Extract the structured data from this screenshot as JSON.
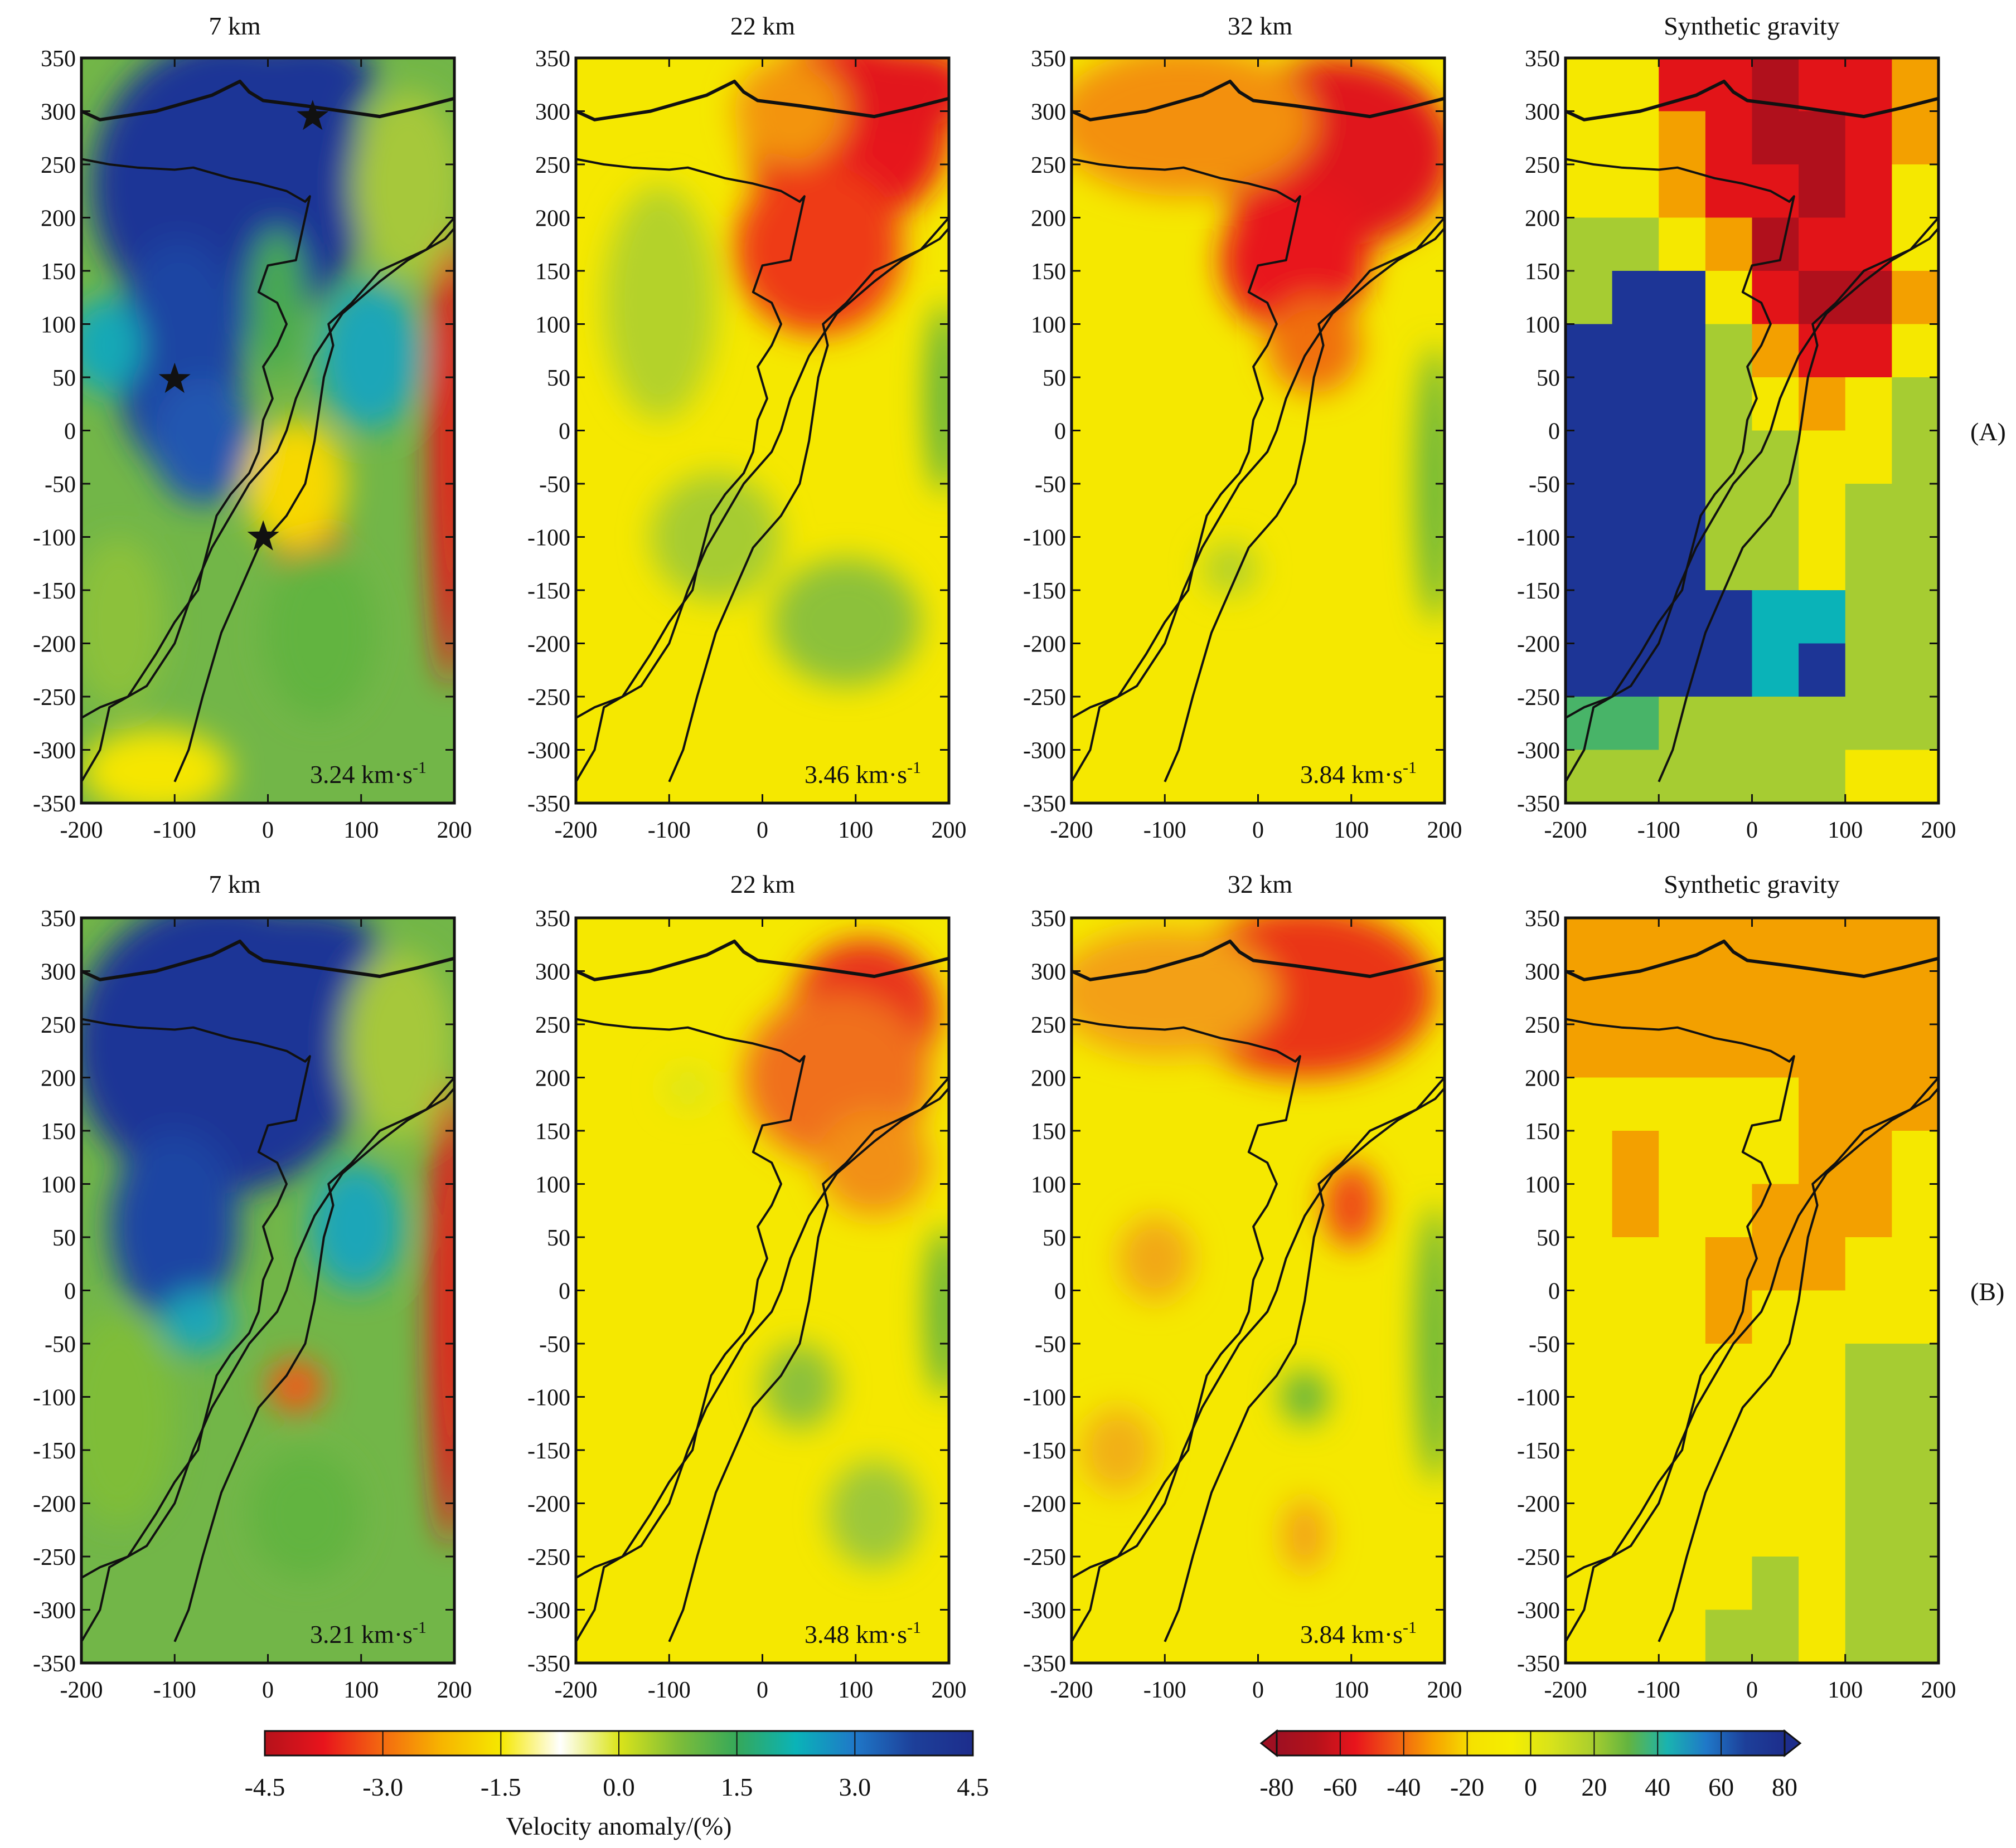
{
  "figure": {
    "row_labels": [
      "(A)",
      "(B)"
    ],
    "colorbars": [
      {
        "title": "Velocity anomaly/(%)",
        "range": [
          -4.5,
          4.5
        ],
        "ticks": [
          "-4.5",
          "-3.0",
          "-1.5",
          "0.0",
          "1.5",
          "3.0",
          "4.5"
        ],
        "stops": [
          "#b5121b",
          "#e8141c",
          "#f46a10",
          "#f7b500",
          "#f5e800",
          "#ffffff",
          "#dbe41a",
          "#7fbd38",
          "#35a85a",
          "#0ab3b8",
          "#1f78c8",
          "#1d3f99",
          "#1d2d8c"
        ]
      },
      {
        "title": "",
        "range": [
          -80,
          80
        ],
        "ticks": [
          "-80",
          "-60",
          "-40",
          "-20",
          "0",
          "20",
          "40",
          "60",
          "80"
        ],
        "stops": [
          "#9e1022",
          "#b5121b",
          "#e8141c",
          "#f05a14",
          "#f7a200",
          "#f5e200",
          "#f5ee00",
          "#d9e31a",
          "#aed02c",
          "#63b440",
          "#1ab3b0",
          "#1f78c8",
          "#1d3f99",
          "#1d2d8c"
        ]
      }
    ]
  },
  "chart_data": [
    {
      "type": "heatmap",
      "row": "A",
      "title": "7 km",
      "annotation": "3.24 km·s",
      "annotation_sup": "-1",
      "xlim": [
        -200,
        200
      ],
      "ylim": [
        -350,
        350
      ],
      "xticks": [
        "-200",
        "-100",
        "0",
        "100",
        "200"
      ],
      "yticks": [
        "350",
        "300",
        "250",
        "200",
        "150",
        "100",
        "50",
        "0",
        "-50",
        "-100",
        "-150",
        "-200",
        "-250",
        "-300",
        "-350"
      ],
      "stars": [
        {
          "x": 48,
          "y": 295
        },
        {
          "x": -100,
          "y": 48
        },
        {
          "x": -5,
          "y": -100
        }
      ]
    },
    {
      "type": "heatmap",
      "row": "A",
      "title": "22 km",
      "annotation": "3.46 km·s",
      "annotation_sup": "-1",
      "xlim": [
        -200,
        200
      ],
      "ylim": [
        -350,
        350
      ],
      "xticks": [
        "-200",
        "-100",
        "0",
        "100",
        "200"
      ],
      "yticks": [
        "350",
        "300",
        "250",
        "200",
        "150",
        "100",
        "50",
        "0",
        "-50",
        "-100",
        "-150",
        "-200",
        "-250",
        "-300",
        "-350"
      ]
    },
    {
      "type": "heatmap",
      "row": "A",
      "title": "32 km",
      "annotation": "3.84 km·s",
      "annotation_sup": "-1",
      "xlim": [
        -200,
        200
      ],
      "ylim": [
        -350,
        350
      ],
      "xticks": [
        "-200",
        "-100",
        "0",
        "100",
        "200"
      ],
      "yticks": [
        "350",
        "300",
        "250",
        "200",
        "150",
        "100",
        "50",
        "0",
        "-50",
        "-100",
        "-150",
        "-200",
        "-250",
        "-300",
        "-350"
      ]
    },
    {
      "type": "heatmap",
      "row": "A",
      "title": "Synthetic gravity",
      "xlim": [
        -200,
        200
      ],
      "ylim": [
        -350,
        350
      ],
      "xticks": [
        "-200",
        "-100",
        "0",
        "100",
        "200"
      ],
      "yticks": [
        "350",
        "300",
        "250",
        "200",
        "150",
        "100",
        "50",
        "0",
        "-50",
        "-100",
        "-150",
        "-200",
        "-250",
        "-300",
        "-350"
      ]
    },
    {
      "type": "heatmap",
      "row": "B",
      "title": "7 km",
      "annotation": "3.21 km·s",
      "annotation_sup": "-1",
      "xlim": [
        -200,
        200
      ],
      "ylim": [
        -350,
        350
      ],
      "xticks": [
        "-200",
        "-100",
        "0",
        "100",
        "200"
      ],
      "yticks": [
        "350",
        "300",
        "250",
        "200",
        "150",
        "100",
        "50",
        "0",
        "-50",
        "-100",
        "-150",
        "-200",
        "-250",
        "-300",
        "-350"
      ]
    },
    {
      "type": "heatmap",
      "row": "B",
      "title": "22 km",
      "annotation": "3.48 km·s",
      "annotation_sup": "-1",
      "xlim": [
        -200,
        200
      ],
      "ylim": [
        -350,
        350
      ],
      "xticks": [
        "-200",
        "-100",
        "0",
        "100",
        "200"
      ],
      "yticks": [
        "350",
        "300",
        "250",
        "200",
        "150",
        "100",
        "50",
        "0",
        "-50",
        "-100",
        "-150",
        "-200",
        "-250",
        "-300",
        "-350"
      ]
    },
    {
      "type": "heatmap",
      "row": "B",
      "title": "32 km",
      "annotation": "3.84 km·s",
      "annotation_sup": "-1",
      "xlim": [
        -200,
        200
      ],
      "ylim": [
        -350,
        350
      ],
      "xticks": [
        "-200",
        "-100",
        "0",
        "100",
        "200"
      ],
      "yticks": [
        "350",
        "300",
        "250",
        "200",
        "150",
        "100",
        "50",
        "0",
        "-50",
        "-100",
        "-150",
        "-200",
        "-250",
        "-300",
        "-350"
      ]
    },
    {
      "type": "heatmap",
      "row": "B",
      "title": "Synthetic gravity",
      "xlim": [
        -200,
        200
      ],
      "ylim": [
        -350,
        350
      ],
      "xticks": [
        "-200",
        "-100",
        "0",
        "100",
        "200"
      ],
      "yticks": [
        "350",
        "300",
        "250",
        "200",
        "150",
        "100",
        "50",
        "0",
        "-50",
        "-100",
        "-150",
        "-200",
        "-250",
        "-300",
        "-350"
      ]
    }
  ]
}
